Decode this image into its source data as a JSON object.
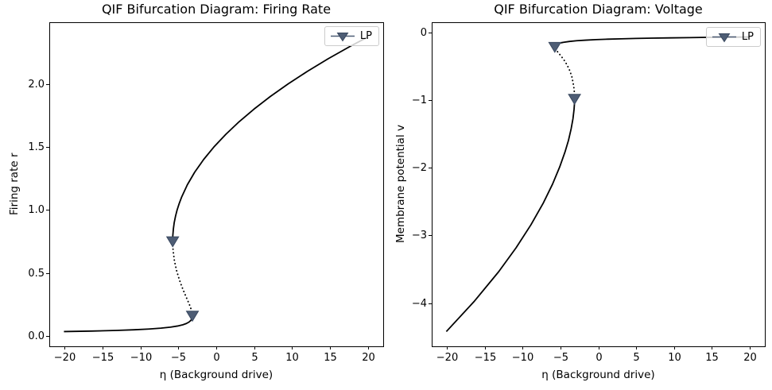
{
  "figure": {
    "background": "#ffffff"
  },
  "chart_data": [
    {
      "type": "line",
      "id": "firing-rate",
      "title": "QIF Bifurcation Diagram: Firing Rate",
      "xlabel": "η (Background drive)",
      "ylabel": "Firing rate r",
      "xlim": [
        -22,
        22
      ],
      "ylim": [
        -0.081,
        2.489
      ],
      "grid": false,
      "xticks": {
        "values": [
          -20,
          -15,
          -10,
          -5,
          0,
          5,
          10,
          15,
          20
        ],
        "labels": [
          "−20",
          "−15",
          "−10",
          "−5",
          "0",
          "5",
          "10",
          "15",
          "20"
        ]
      },
      "yticks": {
        "values": [
          0.0,
          0.5,
          1.0,
          1.5,
          2.0
        ],
        "labels": [
          "0.0",
          "0.5",
          "1.0",
          "1.5",
          "2.0"
        ]
      },
      "legend": {
        "label": "LP",
        "marker": "triangle-down",
        "color": "#4e5d75",
        "edge_color": "#39485f",
        "position": "upper right"
      },
      "series": [
        {
          "name": "stable-lower-branch",
          "style": "solid",
          "color": "#000000",
          "points": [
            [
              -20.07,
              0.036
            ],
            [
              -16.42,
              0.04
            ],
            [
              -13.16,
              0.045
            ],
            [
              -10.86,
              0.05
            ],
            [
              -8.89,
              0.056
            ],
            [
              -7.29,
              0.063
            ],
            [
              -6.04,
              0.071
            ],
            [
              -5.1,
              0.08
            ],
            [
              -4.4,
              0.09
            ],
            [
              -3.93,
              0.1
            ],
            [
              -3.58,
              0.112
            ],
            [
              -3.34,
              0.125
            ],
            [
              -3.2,
              0.14
            ],
            [
              -3.15,
              0.15
            ],
            [
              -3.14,
              0.163
            ]
          ]
        },
        {
          "name": "unstable-middle-branch",
          "style": "dotted",
          "color": "#000000",
          "points": [
            [
              -3.14,
              0.163
            ],
            [
              -3.16,
              0.18
            ],
            [
              -3.24,
              0.2
            ],
            [
              -3.47,
              0.24
            ],
            [
              -3.75,
              0.28
            ],
            [
              -4.11,
              0.33
            ],
            [
              -4.52,
              0.39
            ],
            [
              -4.88,
              0.45
            ],
            [
              -5.23,
              0.52
            ],
            [
              -5.52,
              0.6
            ],
            [
              -5.69,
              0.68
            ],
            [
              -5.74,
              0.753
            ]
          ]
        },
        {
          "name": "stable-upper-branch",
          "style": "solid",
          "color": "#000000",
          "points": [
            [
              -5.74,
              0.753
            ],
            [
              -5.74,
              0.77
            ],
            [
              -5.72,
              0.8
            ],
            [
              -5.65,
              0.85
            ],
            [
              -5.54,
              0.9
            ],
            [
              -5.37,
              0.95
            ],
            [
              -5.16,
              1.0
            ],
            [
              -4.89,
              1.05
            ],
            [
              -4.58,
              1.1
            ],
            [
              -3.81,
              1.2
            ],
            [
              -2.84,
              1.3
            ],
            [
              -1.67,
              1.4
            ],
            [
              -0.31,
              1.5
            ],
            [
              1.26,
              1.6
            ],
            [
              3.01,
              1.7
            ],
            [
              4.97,
              1.8
            ],
            [
              7.12,
              1.9
            ],
            [
              9.47,
              2.0
            ],
            [
              12.02,
              2.1
            ],
            [
              14.76,
              2.2
            ],
            [
              17.71,
              2.3
            ],
            [
              20.0,
              2.373
            ]
          ]
        }
      ],
      "lp_points": [
        {
          "x": -5.74,
          "y": 0.753
        },
        {
          "x": -3.14,
          "y": 0.163
        }
      ]
    },
    {
      "type": "line",
      "id": "voltage",
      "title": "QIF Bifurcation Diagram: Voltage",
      "xlabel": "η (Background drive)",
      "ylabel": "Membrane potential v",
      "xlim": [
        -22,
        22
      ],
      "ylim": [
        -4.639,
        0.151
      ],
      "grid": false,
      "xticks": {
        "values": [
          -20,
          -15,
          -10,
          -5,
          0,
          5,
          10,
          15,
          20
        ],
        "labels": [
          "−20",
          "−15",
          "−10",
          "−5",
          "0",
          "5",
          "10",
          "15",
          "20"
        ]
      },
      "yticks": {
        "values": [
          0,
          -1,
          -2,
          -3,
          -4
        ],
        "labels": [
          "0",
          "−1",
          "−2",
          "−3",
          "−4"
        ]
      },
      "legend": {
        "label": "LP",
        "marker": "triangle-down",
        "color": "#4e5d75",
        "edge_color": "#39485f",
        "position": "upper right"
      },
      "series": [
        {
          "name": "stable-lower-branch",
          "style": "solid",
          "color": "#000000",
          "points": [
            [
              -20.07,
              -4.421
            ],
            [
              -16.42,
              -3.979
            ],
            [
              -13.16,
              -3.537
            ],
            [
              -10.86,
              -3.183
            ],
            [
              -8.89,
              -2.842
            ],
            [
              -7.29,
              -2.527
            ],
            [
              -6.04,
              -2.242
            ],
            [
              -5.1,
              -1.989
            ],
            [
              -4.4,
              -1.768
            ],
            [
              -3.93,
              -1.592
            ],
            [
              -3.58,
              -1.421
            ],
            [
              -3.34,
              -1.273
            ],
            [
              -3.2,
              -1.137
            ],
            [
              -3.15,
              -1.061
            ],
            [
              -3.14,
              -0.979
            ]
          ]
        },
        {
          "name": "unstable-middle-branch",
          "style": "dotted",
          "color": "#000000",
          "points": [
            [
              -3.14,
              -0.979
            ],
            [
              -3.16,
              -0.884
            ],
            [
              -3.24,
              -0.796
            ],
            [
              -3.47,
              -0.663
            ],
            [
              -3.75,
              -0.568
            ],
            [
              -4.11,
              -0.482
            ],
            [
              -4.52,
              -0.408
            ],
            [
              -4.88,
              -0.354
            ],
            [
              -5.23,
              -0.306
            ],
            [
              -5.52,
              -0.265
            ],
            [
              -5.69,
              -0.234
            ],
            [
              -5.74,
              -0.211
            ]
          ]
        },
        {
          "name": "stable-upper-branch",
          "style": "solid",
          "color": "#000000",
          "points": [
            [
              -5.74,
              -0.211
            ],
            [
              -5.74,
              -0.207
            ],
            [
              -5.72,
              -0.199
            ],
            [
              -5.65,
              -0.187
            ],
            [
              -5.54,
              -0.177
            ],
            [
              -5.37,
              -0.168
            ],
            [
              -5.16,
              -0.159
            ],
            [
              -4.89,
              -0.152
            ],
            [
              -4.58,
              -0.145
            ],
            [
              -3.81,
              -0.133
            ],
            [
              -2.84,
              -0.122
            ],
            [
              -1.67,
              -0.114
            ],
            [
              -0.31,
              -0.106
            ],
            [
              1.26,
              -0.099
            ],
            [
              3.01,
              -0.094
            ],
            [
              4.97,
              -0.088
            ],
            [
              7.12,
              -0.084
            ],
            [
              9.47,
              -0.08
            ],
            [
              12.02,
              -0.076
            ],
            [
              14.76,
              -0.072
            ],
            [
              17.71,
              -0.069
            ],
            [
              20.0,
              -0.067
            ]
          ]
        }
      ],
      "lp_points": [
        {
          "x": -5.74,
          "y": -0.211
        },
        {
          "x": -3.14,
          "y": -0.979
        }
      ]
    }
  ]
}
